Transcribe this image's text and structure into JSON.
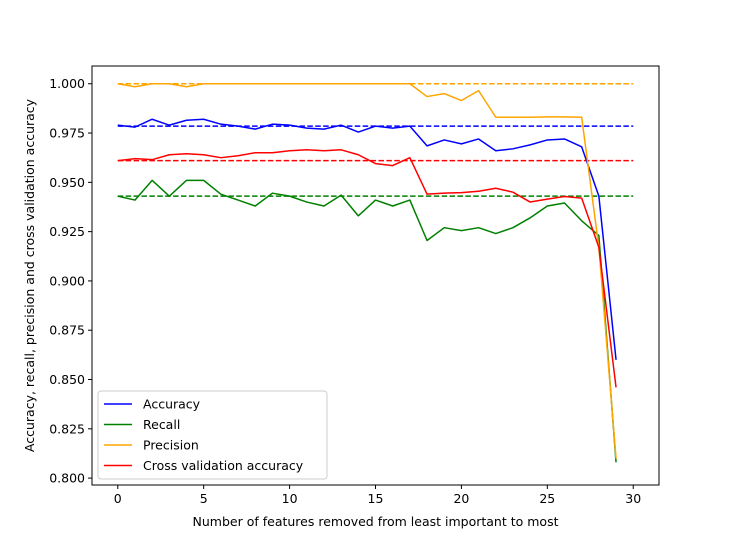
{
  "chart_data": {
    "type": "line",
    "title": "",
    "xlabel": "Number of features removed from least important to most",
    "ylabel": "Accuracy, recall, precision and cross validation accuracy",
    "xlim": [
      -1.5,
      31.5
    ],
    "ylim": [
      0.7965,
      1.009
    ],
    "xticks": [
      0,
      5,
      10,
      15,
      20,
      25,
      30
    ],
    "xtick_labels": [
      "0",
      "5",
      "10",
      "15",
      "20",
      "25",
      "30"
    ],
    "yticks": [
      0.8,
      0.825,
      0.85,
      0.875,
      0.9,
      0.925,
      0.95,
      0.975,
      1.0
    ],
    "ytick_labels": [
      "0.800",
      "0.825",
      "0.850",
      "0.875",
      "0.900",
      "0.925",
      "0.950",
      "0.975",
      "1.000"
    ],
    "grid": false,
    "legend_position": "lower-left",
    "x": [
      0,
      1,
      2,
      3,
      4,
      5,
      6,
      7,
      8,
      9,
      10,
      11,
      12,
      13,
      14,
      15,
      16,
      17,
      18,
      19,
      20,
      21,
      22,
      23,
      24,
      25,
      26,
      27,
      28,
      29
    ],
    "series": [
      {
        "name": "Accuracy",
        "color": "#0000ff",
        "values": [
          0.979,
          0.978,
          0.982,
          0.979,
          0.9815,
          0.982,
          0.9795,
          0.9785,
          0.977,
          0.9795,
          0.979,
          0.9775,
          0.977,
          0.979,
          0.9755,
          0.9785,
          0.9775,
          0.9785,
          0.9685,
          0.9715,
          0.9695,
          0.972,
          0.966,
          0.967,
          0.969,
          0.9715,
          0.972,
          0.968,
          0.943,
          0.86
        ],
        "baseline": 0.9785
      },
      {
        "name": "Recall",
        "color": "#008000",
        "values": [
          0.943,
          0.941,
          0.951,
          0.943,
          0.951,
          0.951,
          0.944,
          0.941,
          0.938,
          0.9445,
          0.943,
          0.94,
          0.938,
          0.9435,
          0.933,
          0.941,
          0.938,
          0.941,
          0.9205,
          0.927,
          0.9255,
          0.927,
          0.924,
          0.927,
          0.932,
          0.938,
          0.9395,
          0.9305,
          0.923,
          0.808
        ],
        "baseline": 0.943
      },
      {
        "name": "Precision",
        "color": "#ffa500",
        "values": [
          1.0,
          0.9985,
          1.0,
          1.0,
          0.9985,
          1.0,
          1.0,
          1.0,
          1.0,
          1.0,
          1.0,
          1.0,
          1.0,
          1.0,
          1.0,
          1.0,
          1.0,
          1.0,
          0.9935,
          0.995,
          0.9915,
          0.9965,
          0.983,
          0.983,
          0.983,
          0.9832,
          0.9832,
          0.983,
          0.917,
          0.81
        ],
        "baseline": 1.0
      },
      {
        "name": "Cross validation accuracy",
        "color": "#ff0000",
        "values": [
          0.961,
          0.962,
          0.9615,
          0.964,
          0.9645,
          0.964,
          0.9625,
          0.9635,
          0.965,
          0.965,
          0.966,
          0.9665,
          0.966,
          0.9665,
          0.964,
          0.9595,
          0.9585,
          0.9625,
          0.944,
          0.9445,
          0.9448,
          0.9455,
          0.947,
          0.945,
          0.94,
          0.9415,
          0.9428,
          0.942,
          0.917,
          0.846
        ],
        "baseline": 0.961
      }
    ]
  }
}
